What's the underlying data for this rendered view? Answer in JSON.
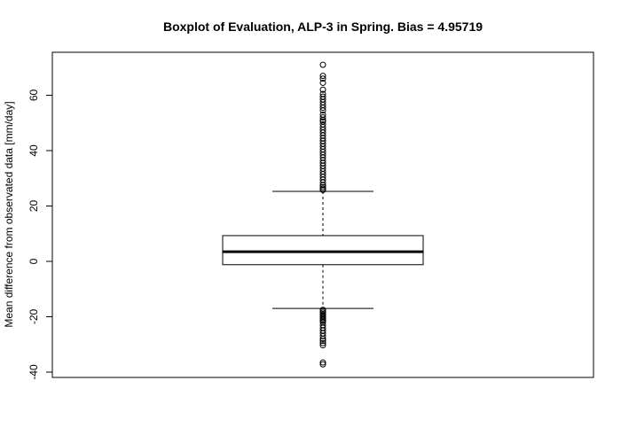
{
  "chart_data": {
    "type": "boxplot",
    "title": "Boxplot of Evaluation, ALP-3 in Spring. Bias = 4.95719",
    "xlabel": "",
    "ylabel": "Mean difference from observated data [mm/day]",
    "ylim": [
      -42,
      75
    ],
    "yticks": [
      -40,
      -20,
      0,
      20,
      40,
      60
    ],
    "ytick_labels": [
      "-40",
      "-20",
      "0",
      "20",
      "40",
      "60"
    ],
    "grid": false,
    "legend": "none",
    "box": {
      "min_whisker": -17,
      "q1": -1.2,
      "median": 3.5,
      "q3": 9.3,
      "max_whisker": 25.3
    },
    "outliers": [
      71,
      67,
      66,
      64.5,
      62,
      60.5,
      59.5,
      58.5,
      57.5,
      56.5,
      55.5,
      54.5,
      53,
      52,
      51,
      50.5,
      49.5,
      48.5,
      47.5,
      46.5,
      45.5,
      44.5,
      43.5,
      42.5,
      41.5,
      40.5,
      39.5,
      38.5,
      37.5,
      36.5,
      35.5,
      34.5,
      33.5,
      32.5,
      31.5,
      30.5,
      29.5,
      28.5,
      27.5,
      26.8,
      26.2,
      25.8,
      -17.5,
      -18,
      -18.5,
      -19,
      -19.5,
      -20,
      -20.5,
      -21,
      -21.5,
      -22,
      -23,
      -24,
      -25,
      -26,
      -27,
      -28,
      -28.7,
      -29.5,
      -30.3,
      -36.5,
      -37.2
    ],
    "colors": {
      "stroke": "#000000",
      "background": "#ffffff"
    }
  }
}
